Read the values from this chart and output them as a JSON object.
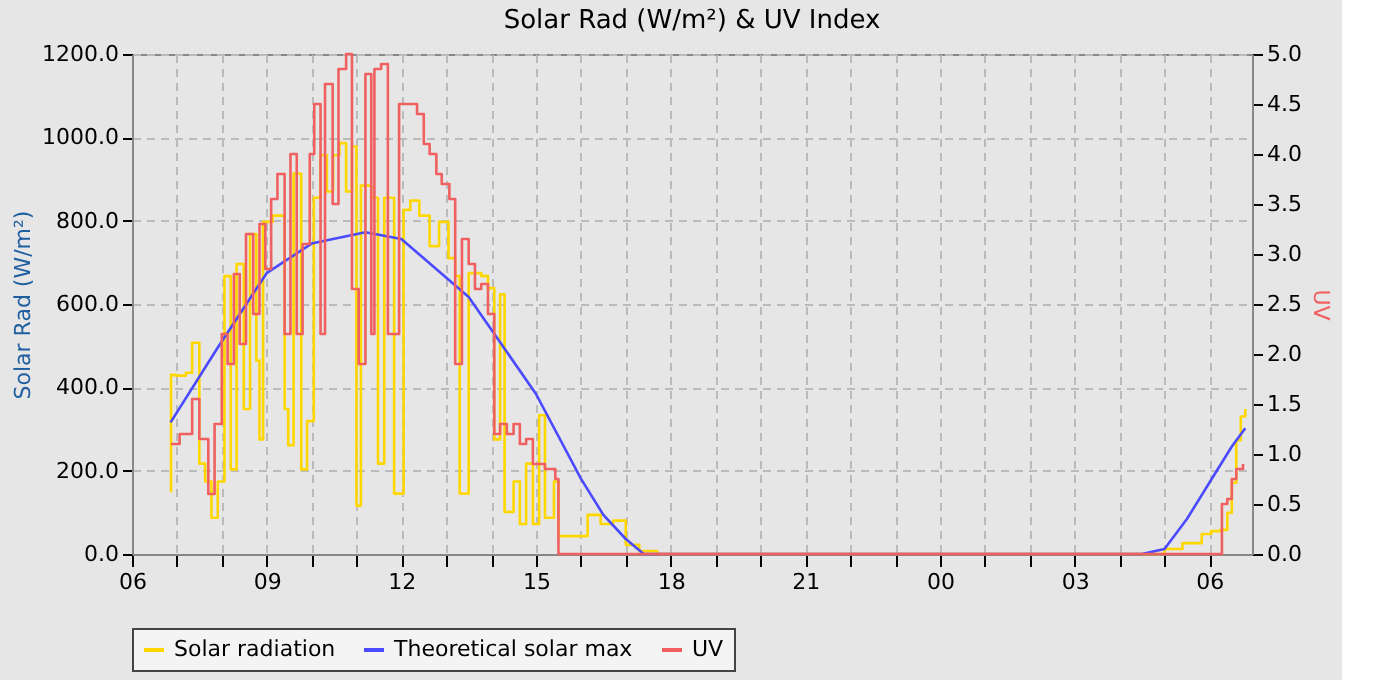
{
  "chart_data": {
    "type": "line",
    "title": "Solar Rad (W/m²) &  UV Index",
    "ylabel": "Solar Rad (W/m²)",
    "y2label": "UV",
    "xlim": [
      6,
      30.95
    ],
    "xticks": [
      {
        "value": 6,
        "label": "06"
      },
      {
        "value": 7,
        "label": null
      },
      {
        "value": 8,
        "label": null
      },
      {
        "value": 9,
        "label": "09"
      },
      {
        "value": 10,
        "label": null
      },
      {
        "value": 11,
        "label": null
      },
      {
        "value": 12,
        "label": "12"
      },
      {
        "value": 13,
        "label": null
      },
      {
        "value": 14,
        "label": null
      },
      {
        "value": 15,
        "label": "15"
      },
      {
        "value": 16,
        "label": null
      },
      {
        "value": 17,
        "label": null
      },
      {
        "value": 18,
        "label": "18"
      },
      {
        "value": 19,
        "label": null
      },
      {
        "value": 20,
        "label": null
      },
      {
        "value": 21,
        "label": "21"
      },
      {
        "value": 22,
        "label": null
      },
      {
        "value": 23,
        "label": null
      },
      {
        "value": 24,
        "label": "00"
      },
      {
        "value": 25,
        "label": null
      },
      {
        "value": 26,
        "label": null
      },
      {
        "value": 27,
        "label": "03"
      },
      {
        "value": 28,
        "label": null
      },
      {
        "value": 29,
        "label": null
      },
      {
        "value": 30,
        "label": "06"
      }
    ],
    "ylim": [
      0,
      1200
    ],
    "yticks": [
      {
        "value": 0,
        "label": "0.0"
      },
      {
        "value": 200,
        "label": "200.0"
      },
      {
        "value": 400,
        "label": "400.0"
      },
      {
        "value": 600,
        "label": "600.0"
      },
      {
        "value": 800,
        "label": "800.0"
      },
      {
        "value": 1000,
        "label": "1000.0"
      },
      {
        "value": 1200,
        "label": "1200.0"
      }
    ],
    "y2lim": [
      0,
      5
    ],
    "y2ticks": [
      {
        "value": 0,
        "label": "0.0"
      },
      {
        "value": 0.5,
        "label": "0.5"
      },
      {
        "value": 1,
        "label": "1.0"
      },
      {
        "value": 1.5,
        "label": "1.5"
      },
      {
        "value": 2,
        "label": "2.0"
      },
      {
        "value": 2.5,
        "label": "2.5"
      },
      {
        "value": 3,
        "label": "3.0"
      },
      {
        "value": 3.5,
        "label": "3.5"
      },
      {
        "value": 4,
        "label": "4.0"
      },
      {
        "value": 4.5,
        "label": "4.5"
      },
      {
        "value": 5,
        "label": "5.0"
      }
    ],
    "grid": true,
    "legend": "bottom",
    "line_style": "solid",
    "marker": "none",
    "series": [
      {
        "name": "Solar radiation",
        "color": "#ffd700",
        "type": "step",
        "x": [
          6.86,
          6.87,
          6.98,
          7.12,
          7.2,
          7.34,
          7.5,
          7.63,
          7.77,
          7.91,
          8.06,
          8.2,
          8.33,
          8.49,
          8.63,
          8.77,
          8.84,
          8.92,
          9.13,
          9.4,
          9.48,
          9.6,
          9.77,
          9.9,
          10.05,
          10.2,
          10.34,
          10.48,
          10.62,
          10.77,
          10.9,
          11.0,
          11.1,
          11.33,
          11.48,
          11.62,
          11.84,
          12.05,
          12.2,
          12.4,
          12.63,
          12.84,
          13.05,
          13.2,
          13.3,
          13.5,
          13.78,
          13.93,
          14.07,
          14.2,
          14.3,
          14.5,
          14.64,
          14.78,
          14.93,
          15.07,
          15.2,
          15.4,
          15.5,
          15.73,
          16.15,
          16.44,
          16.72,
          17.0,
          17.3,
          17.7,
          28.5,
          29,
          29.4,
          29.83,
          30.04,
          30.25,
          30.4,
          30.5,
          30.6,
          30.7,
          30.8
        ],
        "values": [
          150,
          430,
          428,
          428,
          435,
          507,
          217,
          174,
          87,
          174,
          667,
          203,
          696,
          348,
          768,
          464,
          275,
          797,
          812,
          348,
          261,
          913,
          203,
          319,
          855,
          957,
          870,
          957,
          986,
          870,
          978,
          116,
          884,
          855,
          217,
          855,
          145,
          826,
          848,
          812,
          739,
          797,
          710,
          667,
          145,
          674,
          667,
          638,
          275,
          623,
          101,
          174,
          72,
          217,
          72,
          333,
          87,
          174,
          43,
          43,
          94,
          72,
          80,
          22,
          7,
          0,
          0,
          12,
          26,
          48,
          55,
          58,
          99,
          171,
          273,
          330,
          348
        ]
      },
      {
        "name": "Theoretical solar max",
        "color": "#4a4aff",
        "x": [
          6.86,
          7.89,
          9,
          10,
          11.2,
          12,
          13.5,
          15,
          16,
          16.5,
          17,
          17.4,
          28.5,
          29,
          29.5,
          30,
          30.5,
          30.8
        ],
        "values": [
          316,
          492,
          674,
          745,
          772,
          756,
          617,
          384,
          181,
          94,
          36,
          0,
          0,
          12,
          84,
          171,
          258,
          302
        ]
      },
      {
        "name": "UV",
        "color": "#f06060",
        "type": "step",
        "axis": "y2",
        "x": [
          6.87,
          7.06,
          7.34,
          7.5,
          7.7,
          7.84,
          8.0,
          8.13,
          8.27,
          8.4,
          8.54,
          8.7,
          8.84,
          8.97,
          9.1,
          9.24,
          9.4,
          9.53,
          9.67,
          9.8,
          9.96,
          10.06,
          10.2,
          10.3,
          10.47,
          10.6,
          10.77,
          10.9,
          11.05,
          11.2,
          11.33,
          11.4,
          11.55,
          11.7,
          11.85,
          11.95,
          12.13,
          12.35,
          12.5,
          12.63,
          12.78,
          12.9,
          13.07,
          13.2,
          13.35,
          13.5,
          13.64,
          13.78,
          13.93,
          14.07,
          14.2,
          14.35,
          14.5,
          14.64,
          14.78,
          14.93,
          15.07,
          15.2,
          15.43,
          15.5,
          30.28,
          30.4,
          30.5,
          30.6,
          30.75
        ],
        "values": [
          1.1,
          1.2,
          1.55,
          1.15,
          0.6,
          1.3,
          2.2,
          1.9,
          2.8,
          2.1,
          3.2,
          2.4,
          3.3,
          2.85,
          3.55,
          3.8,
          2.2,
          4.0,
          2.2,
          3.1,
          4.0,
          4.5,
          2.2,
          4.7,
          3.5,
          4.85,
          5.0,
          2.65,
          1.9,
          4.8,
          2.2,
          4.85,
          4.9,
          2.2,
          2.2,
          4.5,
          4.5,
          4.4,
          4.1,
          4.0,
          3.8,
          3.7,
          3.55,
          1.9,
          3.15,
          2.9,
          2.65,
          2.7,
          2.4,
          1.2,
          1.3,
          1.2,
          1.3,
          1.1,
          1.15,
          0.9,
          0.9,
          0.85,
          0.75,
          0,
          0.5,
          0.55,
          0.75,
          0.85,
          0.9
        ]
      }
    ]
  }
}
